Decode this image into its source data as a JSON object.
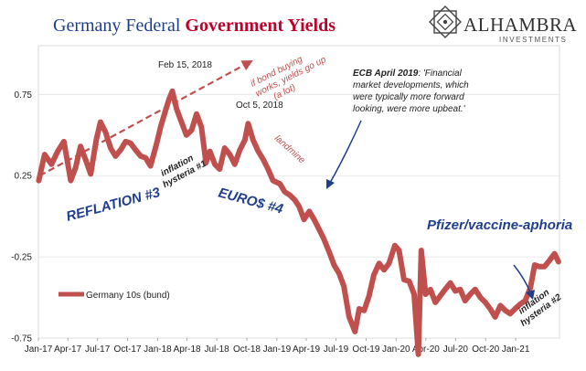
{
  "title": {
    "part1": "Germany Federal ",
    "part2": "Government Yields"
  },
  "brand": {
    "name": "ALHAMBRA",
    "sub": "INVESTMENTS"
  },
  "colors": {
    "title_blue": "#1f3e8c",
    "title_red": "#c0002a",
    "series": "#c0504d",
    "annotation_blue": "#1f3e8c"
  },
  "chart_data": {
    "type": "line",
    "y_axis": {
      "ticks": [
        "0.75",
        "0.25",
        "-0.25",
        "-0.75"
      ],
      "values": [
        0.75,
        0.25,
        -0.25,
        -0.75
      ],
      "ylim": [
        -0.75,
        1.05
      ]
    },
    "x_axis": {
      "ticks": [
        "Jan-17",
        "Apr-17",
        "Jul-17",
        "Oct-17",
        "Jan-18",
        "Apr-18",
        "Jul-18",
        "Oct-18",
        "Jan-19",
        "Apr-19",
        "Jul-19",
        "Oct-19",
        "Jan-20",
        "Apr-20",
        "Jul-20",
        "Oct-20",
        "Jan-21"
      ],
      "xlim": [
        "2017-01-01",
        "2021-05-15"
      ]
    },
    "legend": {
      "label": "Germany 10s (bund)",
      "placement": "bottom-left"
    },
    "series": [
      {
        "name": "Germany 10s (bund)",
        "x": [
          "2017-01-02",
          "2017-01-20",
          "2017-02-10",
          "2017-03-01",
          "2017-03-20",
          "2017-04-10",
          "2017-04-25",
          "2017-05-10",
          "2017-05-25",
          "2017-06-10",
          "2017-06-27",
          "2017-07-10",
          "2017-07-25",
          "2017-08-10",
          "2017-08-25",
          "2017-09-10",
          "2017-09-25",
          "2017-10-10",
          "2017-10-25",
          "2017-11-10",
          "2017-11-25",
          "2017-12-10",
          "2017-12-28",
          "2018-01-10",
          "2018-01-25",
          "2018-02-05",
          "2018-02-15",
          "2018-02-28",
          "2018-03-15",
          "2018-03-30",
          "2018-04-15",
          "2018-04-30",
          "2018-05-15",
          "2018-05-29",
          "2018-06-10",
          "2018-06-25",
          "2018-07-10",
          "2018-07-25",
          "2018-08-10",
          "2018-08-25",
          "2018-09-10",
          "2018-09-25",
          "2018-10-05",
          "2018-10-20",
          "2018-11-05",
          "2018-11-20",
          "2018-12-05",
          "2018-12-20",
          "2019-01-10",
          "2019-01-25",
          "2019-02-10",
          "2019-02-25",
          "2019-03-10",
          "2019-03-25",
          "2019-04-10",
          "2019-04-25",
          "2019-05-10",
          "2019-05-25",
          "2019-06-10",
          "2019-06-25",
          "2019-07-10",
          "2019-07-25",
          "2019-08-10",
          "2019-08-28",
          "2019-09-10",
          "2019-09-25",
          "2019-10-10",
          "2019-10-25",
          "2019-11-10",
          "2019-11-25",
          "2019-12-10",
          "2019-12-28",
          "2020-01-10",
          "2020-01-25",
          "2020-02-10",
          "2020-02-25",
          "2020-03-09",
          "2020-03-18",
          "2020-03-31",
          "2020-04-15",
          "2020-04-30",
          "2020-05-15",
          "2020-05-30",
          "2020-06-15",
          "2020-06-30",
          "2020-07-15",
          "2020-07-30",
          "2020-08-15",
          "2020-08-30",
          "2020-09-15",
          "2020-09-30",
          "2020-10-15",
          "2020-10-30",
          "2020-11-15",
          "2020-11-30",
          "2020-12-15",
          "2020-12-30",
          "2021-01-15",
          "2021-01-30",
          "2021-02-15",
          "2021-02-28",
          "2021-03-15",
          "2021-03-30",
          "2021-04-15",
          "2021-04-30",
          "2021-05-12"
        ],
        "y": [
          0.22,
          0.38,
          0.32,
          0.4,
          0.46,
          0.22,
          0.3,
          0.43,
          0.35,
          0.26,
          0.47,
          0.58,
          0.52,
          0.42,
          0.37,
          0.41,
          0.46,
          0.45,
          0.41,
          0.37,
          0.36,
          0.31,
          0.44,
          0.55,
          0.65,
          0.72,
          0.77,
          0.66,
          0.58,
          0.5,
          0.53,
          0.63,
          0.55,
          0.33,
          0.4,
          0.32,
          0.29,
          0.42,
          0.38,
          0.32,
          0.41,
          0.47,
          0.57,
          0.47,
          0.4,
          0.35,
          0.29,
          0.22,
          0.2,
          0.15,
          0.13,
          0.1,
          0.06,
          -0.02,
          0.03,
          -0.02,
          -0.08,
          -0.14,
          -0.22,
          -0.3,
          -0.35,
          -0.43,
          -0.62,
          -0.71,
          -0.57,
          -0.58,
          -0.49,
          -0.36,
          -0.29,
          -0.33,
          -0.29,
          -0.18,
          -0.21,
          -0.39,
          -0.4,
          -0.48,
          -0.85,
          -0.21,
          -0.48,
          -0.45,
          -0.53,
          -0.49,
          -0.45,
          -0.41,
          -0.46,
          -0.45,
          -0.52,
          -0.48,
          -0.45,
          -0.5,
          -0.53,
          -0.57,
          -0.62,
          -0.55,
          -0.58,
          -0.6,
          -0.57,
          -0.54,
          -0.52,
          -0.44,
          -0.3,
          -0.31,
          -0.31,
          -0.27,
          -0.23,
          -0.28
        ]
      }
    ],
    "trend_arrow": {
      "x": [
        "2017-01-05",
        "2018-10-20"
      ],
      "y": [
        0.25,
        0.96
      ]
    },
    "annotations": [
      {
        "text": "Feb 15, 2018",
        "style": "plain"
      },
      {
        "text": "Oct 5, 2018",
        "style": "plain"
      },
      {
        "text": "if bond buying",
        "style": "red-italic"
      },
      {
        "text": "works, yields go up",
        "style": "red-italic"
      },
      {
        "text": "(a lot)",
        "style": "red-italic"
      },
      {
        "text": "landmine",
        "style": "red-italic"
      },
      {
        "text": "inflation",
        "style": "dark-bold-italic"
      },
      {
        "text": "hysteria #1",
        "style": "dark-bold-italic"
      },
      {
        "text": "REFLATION #3",
        "style": "blue-bold-italic"
      },
      {
        "text": "EURO$ #4",
        "style": "blue-bold-italic"
      },
      {
        "text": "Pfizer/vaccine-aphoria",
        "style": "blue-bold-italic"
      },
      {
        "text": "inflation",
        "style": "dark-bold-italic"
      },
      {
        "text": "hysteria #2",
        "style": "dark-bold-italic"
      },
      {
        "text_bold": "ECB April 2019",
        "text_rest": ": 'Financial",
        "style": "quote"
      },
      {
        "text": "market developments, which",
        "style": "quote"
      },
      {
        "text": "were typically more forward",
        "style": "quote"
      },
      {
        "text": "looking, were more upbeat.'",
        "style": "quote"
      }
    ]
  }
}
